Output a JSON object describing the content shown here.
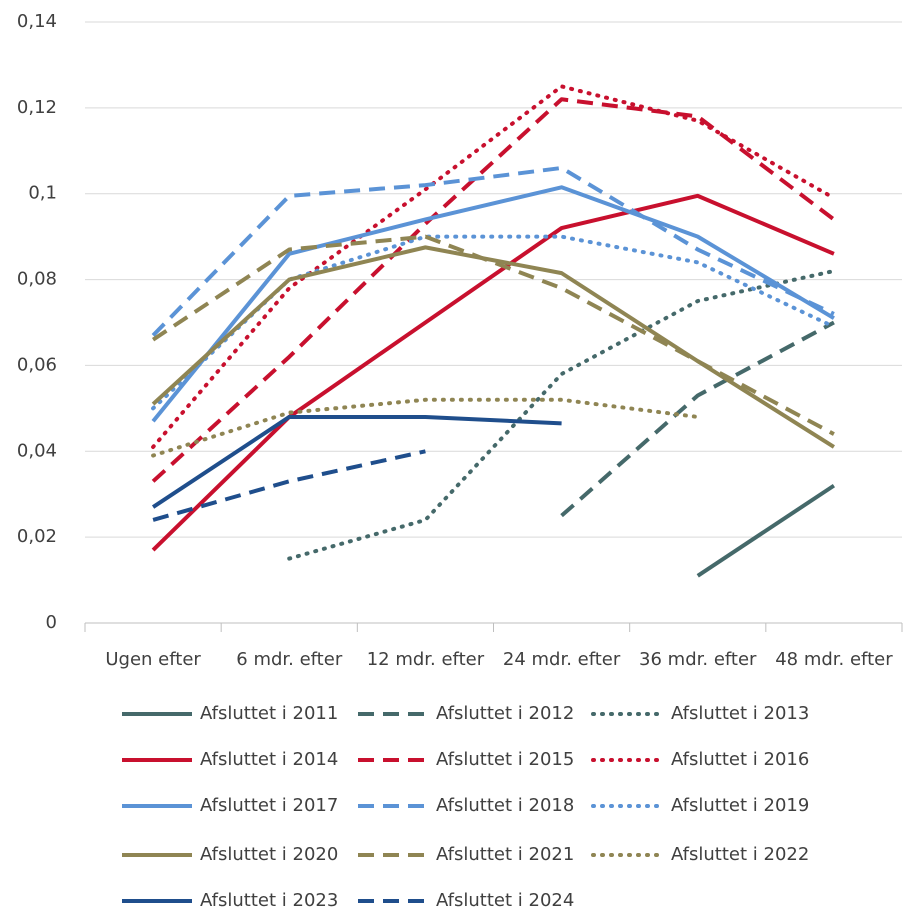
{
  "chart_data": {
    "type": "line",
    "categories": [
      "Ugen efter",
      "6 mdr. efter",
      "12 mdr. efter",
      "24 mdr. efter",
      "36 mdr. efter",
      "48 mdr. efter"
    ],
    "ylim": [
      0,
      0.14
    ],
    "yticks": [
      0,
      {
        "value": 0.02,
        "label": "0,02"
      },
      {
        "value": 0.04,
        "label": "0,04"
      },
      {
        "value": 0.06,
        "label": "0,06"
      },
      {
        "value": 0.08,
        "label": "0,08"
      },
      {
        "value": 0.1,
        "label": "0,1"
      },
      {
        "value": 0.12,
        "label": "0,12"
      },
      {
        "value": 0.14,
        "label": "0,14"
      }
    ],
    "grid": true,
    "legend": "bottom",
    "series": [
      {
        "name": "Afsluttet i 2011",
        "color": "#45696a",
        "dash": "solid",
        "values": [
          null,
          null,
          null,
          null,
          0.011,
          0.032
        ]
      },
      {
        "name": "Afsluttet i 2012",
        "color": "#45696a",
        "dash": "dashed",
        "values": [
          null,
          null,
          null,
          0.025,
          0.053,
          0.07
        ]
      },
      {
        "name": "Afsluttet i 2013",
        "color": "#45696a",
        "dash": "dotted",
        "values": [
          null,
          0.015,
          0.024,
          0.058,
          0.075,
          0.082
        ]
      },
      {
        "name": "Afsluttet i 2014",
        "color": "#c8102e",
        "dash": "solid",
        "values": [
          0.017,
          0.048,
          0.07,
          0.092,
          0.0995,
          0.086
        ]
      },
      {
        "name": "Afsluttet i 2015",
        "color": "#c8102e",
        "dash": "dashed",
        "values": [
          0.033,
          0.062,
          0.093,
          0.122,
          0.118,
          0.094
        ]
      },
      {
        "name": "Afsluttet i 2016",
        "color": "#c8102e",
        "dash": "dotted",
        "values": [
          0.041,
          0.078,
          0.101,
          0.125,
          0.117,
          0.099
        ]
      },
      {
        "name": "Afsluttet i 2017",
        "color": "#5b93d6",
        "dash": "solid",
        "values": [
          0.047,
          0.086,
          0.094,
          0.1015,
          0.09,
          0.071
        ]
      },
      {
        "name": "Afsluttet i 2018",
        "color": "#5b93d6",
        "dash": "dashed",
        "values": [
          0.067,
          0.0995,
          0.102,
          0.106,
          0.087,
          0.072
        ]
      },
      {
        "name": "Afsluttet i 2019",
        "color": "#5b93d6",
        "dash": "dotted",
        "values": [
          0.05,
          0.08,
          0.09,
          0.09,
          0.084,
          0.069
        ]
      },
      {
        "name": "Afsluttet i 2020",
        "color": "#8f8553",
        "dash": "solid",
        "values": [
          0.051,
          0.08,
          0.0875,
          0.0815,
          0.061,
          0.041
        ]
      },
      {
        "name": "Afsluttet i 2021",
        "color": "#8f8553",
        "dash": "dashed",
        "values": [
          0.066,
          0.087,
          0.09,
          0.078,
          0.061,
          0.044
        ]
      },
      {
        "name": "Afsluttet i 2022",
        "color": "#8f8553",
        "dash": "dotted",
        "values": [
          0.039,
          0.049,
          0.052,
          0.052,
          0.048,
          null
        ]
      },
      {
        "name": "Afsluttet i 2023",
        "color": "#1f4e8c",
        "dash": "solid",
        "values": [
          0.027,
          0.048,
          0.048,
          0.0465,
          null,
          null
        ]
      },
      {
        "name": "Afsluttet i 2024",
        "color": "#1f4e8c",
        "dash": "dashed",
        "values": [
          0.024,
          0.033,
          0.04,
          null,
          null,
          null
        ]
      }
    ]
  }
}
